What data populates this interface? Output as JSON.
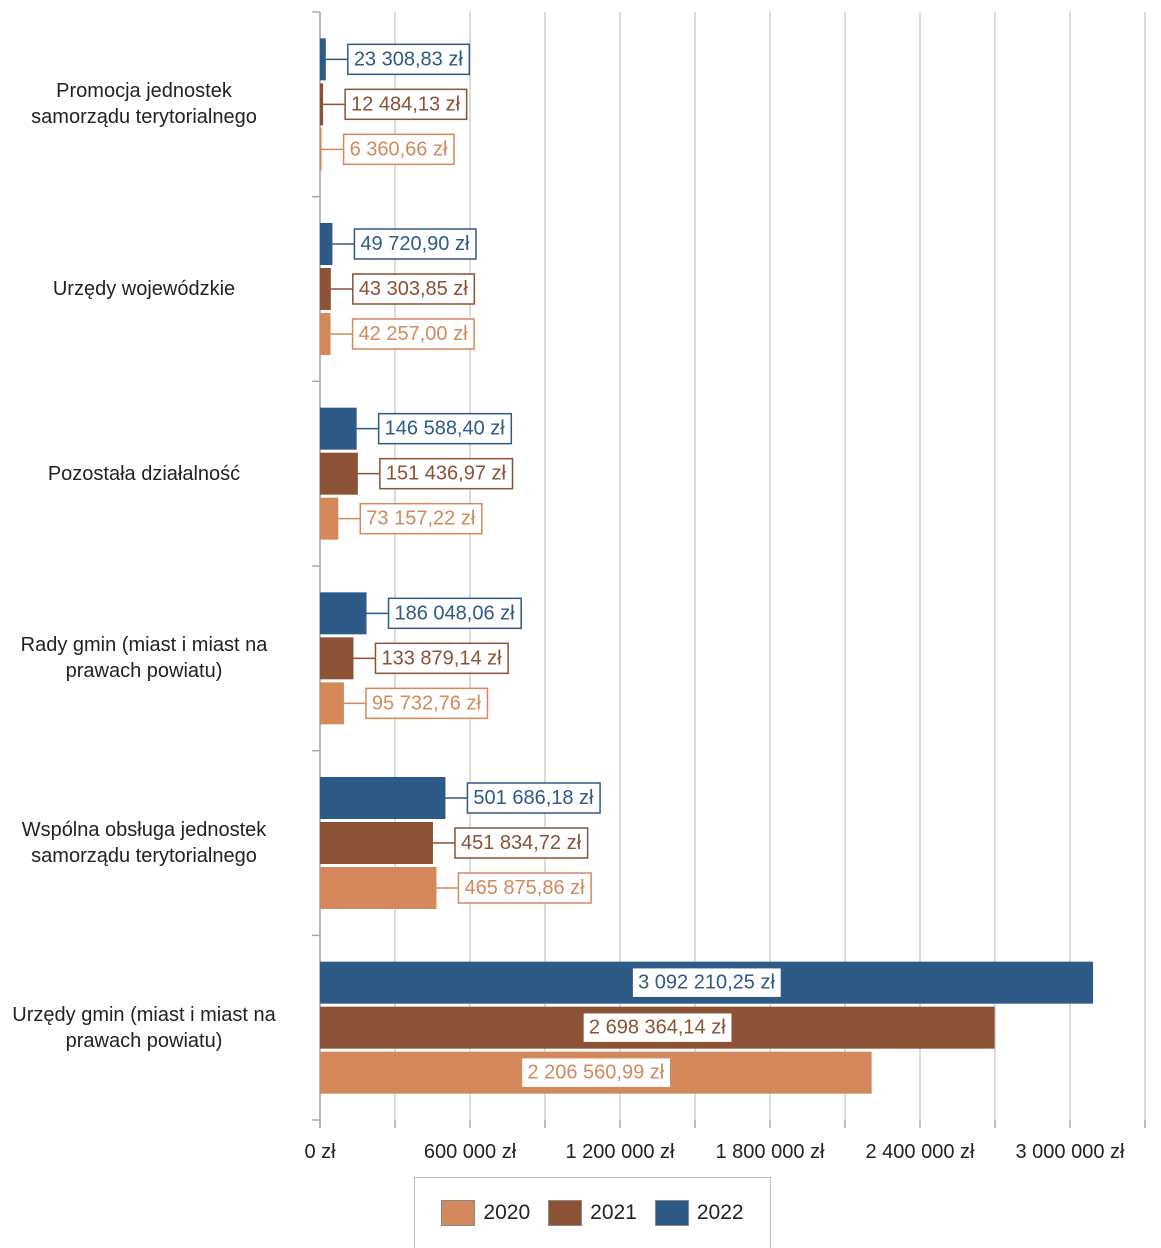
{
  "chart_data": {
    "type": "hbar",
    "categories": [
      "Promocja jednostek\nsamorządu terytorialnego",
      "Urzędy wojewódzkie",
      "Pozostała działalność",
      "Rady gmin (miast i miast na\nprawach powiatu)",
      "Wspólna obsługa jednostek\nsamorządu terytorialnego",
      "Urzędy gmin (miast i miast na\nprawach powiatu)"
    ],
    "series": [
      {
        "name": "2020",
        "color": "#d4895d",
        "values": [
          6360.66,
          42257.0,
          73157.22,
          95732.76,
          465875.86,
          2206560.99
        ],
        "value_labels": [
          "6 360,66 zł",
          "42 257,00 zł",
          "73 157,22 zł",
          "95 732,76 zł",
          "465 875,86 zł",
          "2 206 560,99 zł"
        ]
      },
      {
        "name": "2021",
        "color": "#8b5236",
        "values": [
          12484.13,
          43303.85,
          151436.97,
          133879.14,
          451834.72,
          2698364.14
        ],
        "value_labels": [
          "12 484,13 zł",
          "43 303,85 zł",
          "151 436,97 zł",
          "133 879,14 zł",
          "451 834,72 zł",
          "2 698 364,14 zł"
        ]
      },
      {
        "name": "2022",
        "color": "#2e5a87",
        "values": [
          23308.83,
          49720.9,
          146588.4,
          186048.06,
          501686.18,
          3092210.25
        ],
        "value_labels": [
          "23 308,83 zł",
          "49 720,90 zł",
          "146 588,40 zł",
          "186 048,06 zł",
          "501 686,18 zł",
          "3 092 210,25 zł"
        ]
      }
    ],
    "xlim": [
      0,
      3360000
    ],
    "xticks": [
      {
        "value": 0,
        "label": "0 zł"
      },
      {
        "value": 600000,
        "label": "600 000 zł"
      },
      {
        "value": 1200000,
        "label": "1 200 000 zł"
      },
      {
        "value": 1800000,
        "label": "1 800 000 zł"
      },
      {
        "value": 2400000,
        "label": "2 400 000 zł"
      },
      {
        "value": 3000000,
        "label": "3 000 000 zł"
      }
    ],
    "xminor": [
      300000,
      900000,
      1500000,
      2100000,
      2700000,
      3300000
    ],
    "grid": true,
    "legend": "bottom"
  }
}
